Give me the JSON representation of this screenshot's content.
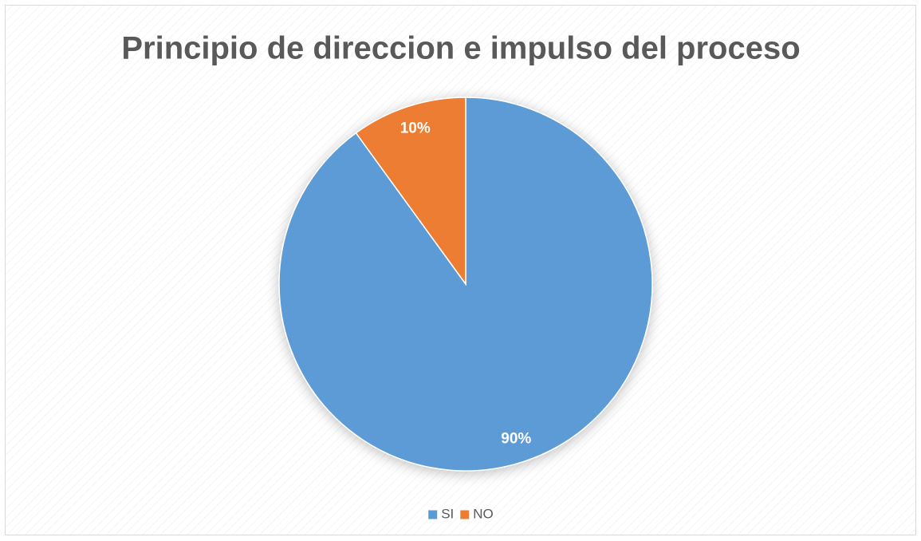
{
  "chart_data": {
    "type": "pie",
    "title": "Principio de direccion e impulso del proceso",
    "categories": [
      "SI",
      "NO"
    ],
    "values": [
      90,
      10
    ],
    "value_labels": [
      "90%",
      "10%"
    ],
    "colors": [
      "#5b9bd5",
      "#ed7d31"
    ],
    "legend": "bottom"
  }
}
